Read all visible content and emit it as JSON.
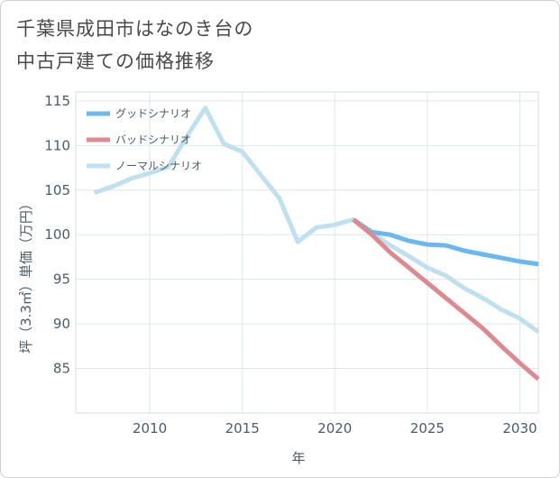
{
  "title": {
    "line1": "千葉県成田市はなのき台の",
    "line2": "中古戸建ての価格推移"
  },
  "chart_data": {
    "type": "line",
    "xlabel": "年",
    "ylabel": "坪（3.3㎡）単価（万円）",
    "xlim": [
      2006,
      2031
    ],
    "ylim": [
      80,
      116
    ],
    "xticks": [
      2010,
      2015,
      2020,
      2025,
      2030
    ],
    "yticks": [
      85,
      90,
      95,
      100,
      105,
      110,
      115
    ],
    "legend_position": "top-left",
    "series": [
      {
        "name": "グッドシナリオ",
        "color": "#6ab8ee",
        "x": [
          2021,
          2022,
          2023,
          2024,
          2025,
          2026,
          2027,
          2028,
          2029,
          2030,
          2031
        ],
        "values": [
          101.7,
          100.3,
          100.0,
          99.3,
          98.9,
          98.8,
          98.2,
          97.8,
          97.4,
          97.0,
          96.7
        ]
      },
      {
        "name": "バッドシナリオ",
        "color": "#dc8a90",
        "x": [
          2021,
          2022,
          2023,
          2024,
          2025,
          2026,
          2027,
          2028,
          2029,
          2030,
          2031
        ],
        "values": [
          101.7,
          100.0,
          98.0,
          96.3,
          94.6,
          92.9,
          91.2,
          89.5,
          87.5,
          85.6,
          83.8
        ]
      },
      {
        "name": "ノーマルシナリオ",
        "color": "#bfe0ef",
        "x": [
          2007,
          2008,
          2009,
          2010,
          2011,
          2012,
          2013,
          2014,
          2015,
          2016,
          2017,
          2018,
          2019,
          2020,
          2021,
          2022,
          2023,
          2024,
          2025,
          2026,
          2027,
          2028,
          2029,
          2030,
          2031
        ],
        "values": [
          104.7,
          105.4,
          106.3,
          106.9,
          107.6,
          111.0,
          114.2,
          110.2,
          109.3,
          106.7,
          104.1,
          99.2,
          100.8,
          101.1,
          101.7,
          100.2,
          98.8,
          97.6,
          96.3,
          95.4,
          94.0,
          92.9,
          91.6,
          90.6,
          89.1
        ]
      }
    ]
  }
}
